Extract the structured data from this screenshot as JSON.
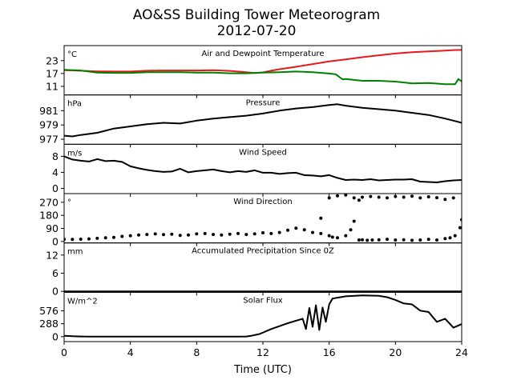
{
  "figure": {
    "title_line1": "AO&SS Building Tower Meteorogram",
    "title_line2": "2012-07-20",
    "xlabel": "Time (UTC)",
    "x_ticks": [
      "0",
      "4",
      "8",
      "12",
      "16",
      "20",
      "24"
    ]
  },
  "chart_data": [
    {
      "type": "line",
      "title": "Air and Dewpoint Temperature",
      "unit": "°C",
      "xlim": [
        0,
        24
      ],
      "ylim": [
        7,
        30
      ],
      "yticks": [
        11,
        17,
        23
      ],
      "series": [
        {
          "color": "#e41a1c",
          "x": [
            0,
            1,
            2,
            3,
            4,
            5,
            6,
            7,
            8,
            9,
            10,
            10.7,
            11.5,
            12,
            12.5,
            13,
            14,
            15,
            16,
            17,
            18,
            19,
            20,
            21,
            22,
            23,
            23.5,
            24
          ],
          "values": [
            18.5,
            18.3,
            18.0,
            17.9,
            17.9,
            18.3,
            18.4,
            18.4,
            18.4,
            18.5,
            18.2,
            17.8,
            17.2,
            17.5,
            18.3,
            19.0,
            20.1,
            21.4,
            22.6,
            23.6,
            24.6,
            25.5,
            26.3,
            26.9,
            27.3,
            27.7,
            27.9,
            28.0
          ]
        },
        {
          "color": "#008000",
          "x": [
            0,
            1,
            2,
            3,
            4,
            5,
            6,
            7,
            8,
            9,
            10,
            11,
            12,
            13,
            14,
            15,
            16,
            16.4,
            16.8,
            17,
            18,
            19,
            20,
            21,
            22,
            23,
            23.6,
            23.8,
            24
          ],
          "values": [
            18.7,
            18.4,
            17.4,
            17.3,
            17.3,
            17.6,
            17.6,
            17.6,
            17.4,
            17.4,
            17.1,
            17.1,
            17.4,
            17.6,
            17.9,
            17.6,
            17.0,
            16.6,
            14.3,
            14.4,
            13.6,
            13.6,
            13.2,
            12.4,
            12.6,
            12.0,
            12.0,
            14.4,
            13.3
          ]
        }
      ]
    },
    {
      "type": "line",
      "title": "Pressure",
      "unit": "hPa",
      "xlim": [
        0,
        24
      ],
      "ylim": [
        976.3,
        983.2
      ],
      "yticks": [
        977,
        979,
        981
      ],
      "series": [
        {
          "color": "#000000",
          "x": [
            0,
            0.5,
            1,
            2,
            3,
            4,
            5,
            6,
            7,
            8,
            9,
            10,
            11,
            12,
            13,
            14,
            15,
            16,
            16.5,
            17,
            18,
            19,
            20,
            21,
            22,
            23,
            23.5,
            24
          ],
          "values": [
            977.5,
            977.4,
            977.6,
            977.9,
            978.5,
            978.8,
            979.1,
            979.3,
            979.2,
            979.6,
            979.9,
            980.1,
            980.3,
            980.6,
            981.0,
            981.3,
            981.5,
            981.8,
            981.9,
            981.7,
            981.4,
            981.2,
            981.0,
            980.7,
            980.4,
            979.9,
            979.6,
            979.3
          ]
        }
      ]
    },
    {
      "type": "line",
      "title": "Wind Speed",
      "unit": "m/s",
      "xlim": [
        0,
        24
      ],
      "ylim": [
        -1.3,
        11
      ],
      "yticks": [
        0,
        4,
        8
      ],
      "series": [
        {
          "color": "#000000",
          "x": [
            0,
            0.5,
            1,
            1.5,
            2,
            2.5,
            3,
            3.5,
            4,
            4.5,
            5,
            5.5,
            6,
            6.5,
            7,
            7.5,
            8,
            8.5,
            9,
            9.5,
            10,
            10.5,
            11,
            11.5,
            12,
            12.5,
            13,
            13.5,
            14,
            14.5,
            15,
            15.5,
            16,
            16.5,
            17,
            17.5,
            18,
            18.5,
            19,
            19.5,
            20,
            20.5,
            21,
            21.5,
            22,
            22.5,
            23,
            23.5,
            24
          ],
          "values": [
            8.0,
            7.2,
            6.9,
            6.7,
            7.3,
            6.8,
            6.9,
            6.6,
            5.5,
            5.0,
            4.6,
            4.3,
            4.1,
            4.2,
            4.9,
            4.0,
            4.3,
            4.5,
            4.7,
            4.3,
            4.0,
            4.3,
            4.1,
            4.5,
            3.9,
            3.9,
            3.6,
            3.8,
            3.9,
            3.3,
            3.2,
            3.0,
            3.3,
            2.6,
            2.1,
            2.2,
            2.1,
            2.3,
            2.0,
            2.1,
            2.2,
            2.2,
            2.3,
            1.7,
            1.6,
            1.5,
            1.8,
            2.0,
            2.1
          ]
        }
      ]
    },
    {
      "type": "scatter",
      "title": "Wind Direction",
      "unit": "°",
      "xlim": [
        0,
        24
      ],
      "ylim": [
        -10,
        330
      ],
      "yticks": [
        0,
        90,
        180,
        270
      ],
      "series": [
        {
          "color": "#000000",
          "x": [
            0,
            0.5,
            1,
            1.5,
            2,
            2.5,
            3,
            3.5,
            4,
            4.5,
            5,
            5.5,
            6,
            6.5,
            7,
            7.5,
            8,
            8.5,
            9,
            9.5,
            10,
            10.5,
            11,
            11.5,
            12,
            12.5,
            13,
            13.5,
            14,
            14.5,
            15,
            15.5,
            16,
            16.2,
            16.5,
            17,
            17.3,
            17.5,
            17.8,
            18,
            18.3,
            18.6,
            19,
            19.5,
            20,
            20.5,
            21,
            21.5,
            22,
            22.5,
            23,
            23.3,
            23.6,
            23.9,
            24
          ],
          "values": [
            15,
            14,
            16,
            18,
            22,
            25,
            28,
            35,
            40,
            45,
            48,
            52,
            47,
            50,
            42,
            45,
            52,
            55,
            48,
            45,
            50,
            55,
            48,
            52,
            60,
            55,
            62,
            78,
            92,
            80,
            62,
            55,
            40,
            30,
            25,
            40,
            80,
            140,
            10,
            12,
            8,
            10,
            12,
            15,
            10,
            12,
            8,
            10,
            15,
            10,
            20,
            25,
            40,
            95,
            150
          ]
        },
        {
          "color": "#000000",
          "x": [
            15.5,
            16.0,
            16.5,
            17.0,
            17.5,
            17.8,
            18.0,
            18.5,
            19.0,
            19.5,
            20.0,
            20.5,
            21.0,
            21.5,
            22.0,
            22.5,
            23.0,
            23.5
          ],
          "values": [
            160,
            300,
            315,
            320,
            300,
            285,
            305,
            310,
            305,
            300,
            310,
            305,
            312,
            300,
            308,
            302,
            290,
            300
          ]
        }
      ]
    },
    {
      "type": "line",
      "title": "Accumulated Precipitation Since 0Z",
      "unit": "mm",
      "xlim": [
        0,
        24
      ],
      "ylim": [
        -0.3,
        16
      ],
      "yticks": [
        0,
        6,
        12
      ],
      "series": [
        {
          "color": "#000000",
          "x": [
            0,
            24
          ],
          "values": [
            0,
            0
          ]
        }
      ]
    },
    {
      "type": "line",
      "title": "Solar Flux",
      "unit": "W/m^2",
      "xlim": [
        0,
        24
      ],
      "ylim": [
        -110,
        990
      ],
      "yticks": [
        0,
        288,
        576
      ],
      "series": [
        {
          "color": "#000000",
          "x": [
            0,
            0.5,
            1,
            1.5,
            2,
            3,
            4,
            5,
            6,
            7,
            8,
            9,
            10,
            10.5,
            11,
            11.3,
            11.8,
            12.5,
            13.5,
            14.4,
            14.6,
            14.8,
            15,
            15.2,
            15.4,
            15.6,
            15.8,
            16,
            16.2,
            16.5,
            17,
            18,
            19,
            19.5,
            20,
            20.5,
            21,
            21.5,
            22,
            22.5,
            23,
            23.5,
            24
          ],
          "values": [
            20,
            10,
            5,
            2,
            0,
            0,
            0,
            0,
            0,
            0,
            0,
            0,
            0,
            0,
            5,
            20,
            60,
            170,
            300,
            400,
            170,
            640,
            220,
            700,
            150,
            650,
            330,
            720,
            850,
            870,
            900,
            920,
            910,
            880,
            820,
            740,
            720,
            580,
            550,
            330,
            400,
            200,
            280
          ]
        }
      ]
    }
  ]
}
